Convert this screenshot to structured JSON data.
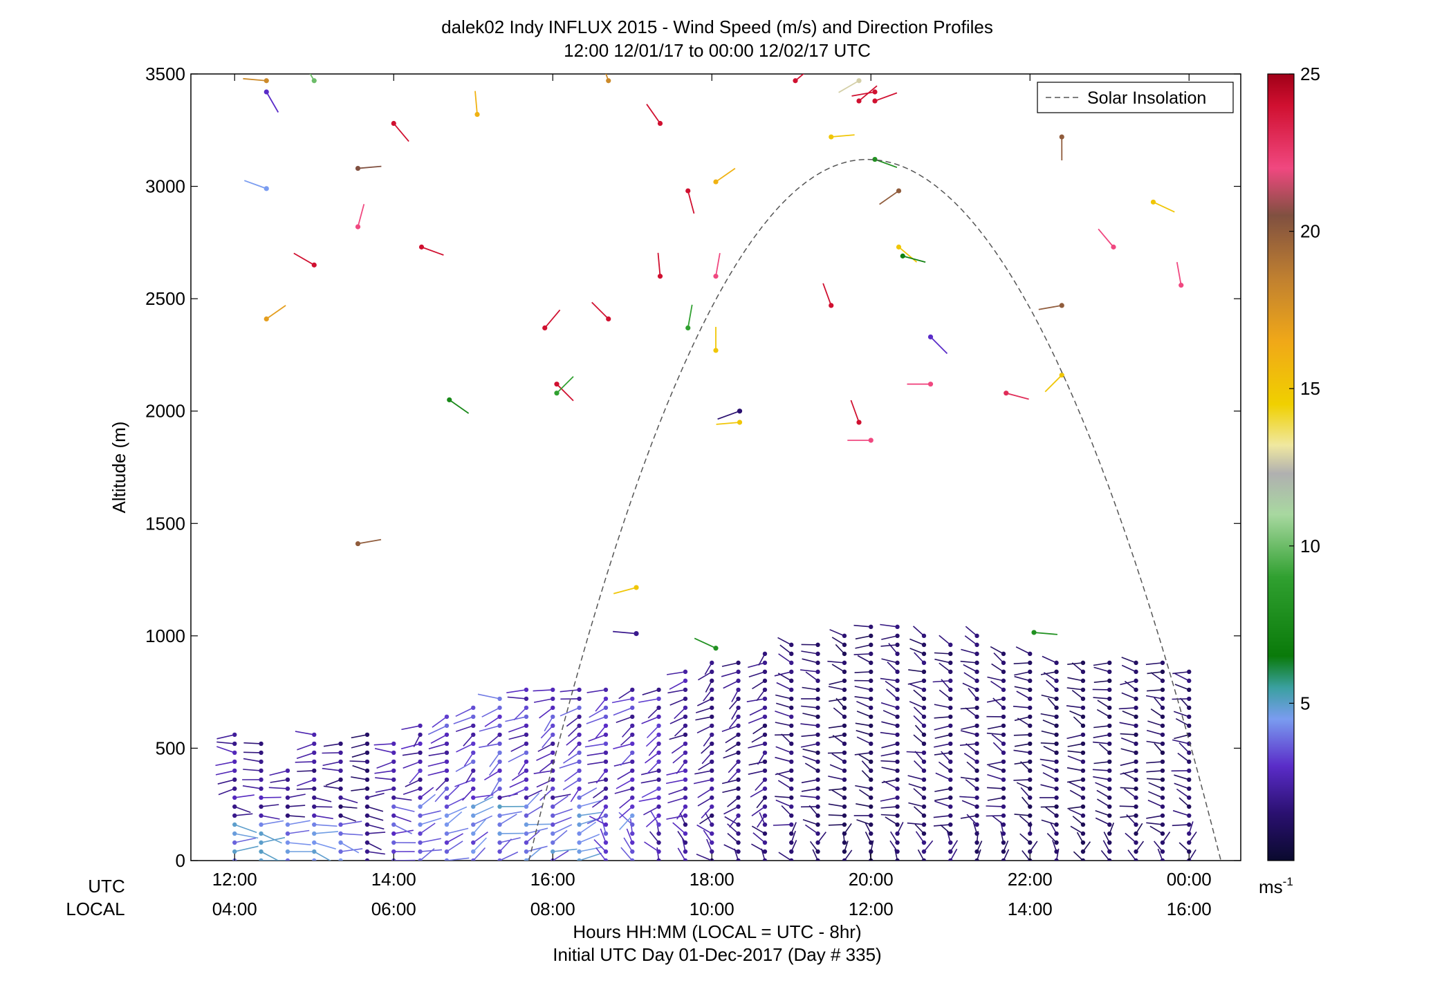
{
  "chart_data": {
    "type": "wind-barb-profile",
    "title": "dalek02 Indy INFLUX 2015 - Wind Speed (m/s) and Direction Profiles",
    "subtitle": "12:00 12/01/17 to 00:00 12/02/17  UTC",
    "ylabel": "Altitude (m)",
    "xlabel": "Hours HH:MM  (LOCAL = UTC - 8hr)",
    "xlabel2": "Initial UTC Day 01-Dec-2017 (Day # 335)",
    "row_label_utc": "UTC",
    "row_label_local": "LOCAL",
    "ylim": [
      0,
      3500
    ],
    "xlim_hours": [
      11.45,
      24.65
    ],
    "y_ticks": [
      "0",
      "500",
      "1000",
      "1500",
      "2000",
      "2500",
      "3000",
      "3500"
    ],
    "x_ticks": [
      {
        "utc": "12:00",
        "local": "04:00",
        "h": 12
      },
      {
        "utc": "14:00",
        "local": "06:00",
        "h": 14
      },
      {
        "utc": "16:00",
        "local": "08:00",
        "h": 16
      },
      {
        "utc": "18:00",
        "local": "10:00",
        "h": 18
      },
      {
        "utc": "20:00",
        "local": "12:00",
        "h": 20
      },
      {
        "utc": "22:00",
        "local": "14:00",
        "h": 22
      },
      {
        "utc": "00:00",
        "local": "16:00",
        "h": 24
      }
    ],
    "legend": {
      "label": "Solar Insolation",
      "position": "top-right",
      "style": "dashed"
    },
    "solar_insolation": {
      "start_h": 15.7,
      "end_h": 24.4,
      "peak_h": 19.95,
      "peak_altitude": 3120
    },
    "colorbar": {
      "range": [
        0,
        25
      ],
      "ticks": [
        "5",
        "10",
        "15",
        "20",
        "25"
      ],
      "unit": "ms",
      "unit_exp": "-1",
      "stops": [
        {
          "v": 0,
          "c": "#0a0a2e"
        },
        {
          "v": 1.5,
          "c": "#2a1070"
        },
        {
          "v": 3,
          "c": "#5a2cc8"
        },
        {
          "v": 4.5,
          "c": "#7a9cf0"
        },
        {
          "v": 5.5,
          "c": "#3aa0a0"
        },
        {
          "v": 6.5,
          "c": "#0a7a0a"
        },
        {
          "v": 9,
          "c": "#30a030"
        },
        {
          "v": 11,
          "c": "#a8d8a0"
        },
        {
          "v": 12.3,
          "c": "#b0b0b0"
        },
        {
          "v": 13.2,
          "c": "#f0e8a0"
        },
        {
          "v": 14.5,
          "c": "#f0d000"
        },
        {
          "v": 16.5,
          "c": "#f0a818"
        },
        {
          "v": 18.5,
          "c": "#c08030"
        },
        {
          "v": 20.5,
          "c": "#805040"
        },
        {
          "v": 22,
          "c": "#f04880"
        },
        {
          "v": 24,
          "c": "#d01030"
        },
        {
          "v": 25,
          "c": "#a00018"
        }
      ]
    },
    "profile_times_h": [
      12,
      12.333,
      12.667,
      13,
      13.333,
      13.667,
      14,
      14.333,
      14.667,
      15,
      15.333,
      15.667,
      16,
      16.333,
      16.667,
      17,
      17.333,
      17.667,
      18,
      18.333,
      18.667,
      19,
      19.333,
      19.667,
      20,
      20.333,
      20.667,
      21,
      21.333,
      21.667,
      22,
      22.333,
      22.667,
      23,
      23.333,
      23.667,
      24
    ],
    "profile_top_altitude_m": [
      560,
      520,
      430,
      560,
      520,
      560,
      520,
      600,
      660,
      700,
      720,
      760,
      790,
      790,
      790,
      790,
      790,
      860,
      880,
      900,
      920,
      960,
      980,
      1010,
      1050,
      1040,
      1030,
      980,
      1000,
      950,
      920,
      900,
      890,
      880,
      880,
      880,
      860
    ],
    "profile_mean_speed_ms": [
      2.2,
      2.2,
      2.0,
      2.2,
      1.8,
      1.6,
      2.2,
      2.6,
      3.0,
      3.2,
      3.2,
      3.0,
      3.0,
      3.0,
      2.8,
      2.8,
      2.6,
      2.2,
      2.0,
      1.8,
      1.8,
      1.6,
      1.4,
      1.2,
      1.2,
      1.4,
      1.4,
      1.4,
      1.4,
      1.4,
      1.2,
      1.2,
      1.2,
      1.2,
      1.2,
      1.2,
      1.4
    ],
    "sparse_points": [
      {
        "t": 12.4,
        "alt": 3470,
        "ws": 18,
        "dir": 275
      },
      {
        "t": 12.4,
        "alt": 3420,
        "ws": 3,
        "dir": 150
      },
      {
        "t": 12.4,
        "alt": 2990,
        "ws": 4.5,
        "dir": 290
      },
      {
        "t": 12.4,
        "alt": 2410,
        "ws": 17,
        "dir": 55
      },
      {
        "t": 13.0,
        "alt": 3470,
        "ws": 10,
        "dir": 330
      },
      {
        "t": 13.0,
        "alt": 2650,
        "ws": 24,
        "dir": 300
      },
      {
        "t": 13.55,
        "alt": 3080,
        "ws": 20.5,
        "dir": 85
      },
      {
        "t": 13.55,
        "alt": 2820,
        "ws": 22,
        "dir": 15
      },
      {
        "t": 13.55,
        "alt": 1410,
        "ws": 20,
        "dir": 80
      },
      {
        "t": 14.0,
        "alt": 3280,
        "ws": 24,
        "dir": 140
      },
      {
        "t": 14.35,
        "alt": 2730,
        "ws": 24,
        "dir": 110
      },
      {
        "t": 14.7,
        "alt": 2050,
        "ws": 7.5,
        "dir": 125
      },
      {
        "t": 15.05,
        "alt": 3320,
        "ws": 16,
        "dir": 355
      },
      {
        "t": 15.9,
        "alt": 2370,
        "ws": 24,
        "dir": 40
      },
      {
        "t": 16.05,
        "alt": 2120,
        "ws": 24,
        "dir": 135
      },
      {
        "t": 16.05,
        "alt": 2080,
        "ws": 9,
        "dir": 45
      },
      {
        "t": 16.7,
        "alt": 2410,
        "ws": 24,
        "dir": 315
      },
      {
        "t": 16.7,
        "alt": 3470,
        "ws": 18,
        "dir": 340
      },
      {
        "t": 17.05,
        "alt": 1215,
        "ws": 15,
        "dir": 255
      },
      {
        "t": 17.05,
        "alt": 1010,
        "ws": 2,
        "dir": 275
      },
      {
        "t": 17.35,
        "alt": 3280,
        "ws": 24,
        "dir": 325
      },
      {
        "t": 17.35,
        "alt": 2600,
        "ws": 24,
        "dir": 355
      },
      {
        "t": 17.7,
        "alt": 2980,
        "ws": 24,
        "dir": 165
      },
      {
        "t": 17.7,
        "alt": 2370,
        "ws": 9,
        "dir": 10
      },
      {
        "t": 18.05,
        "alt": 3020,
        "ws": 16,
        "dir": 55
      },
      {
        "t": 18.05,
        "alt": 2600,
        "ws": 22,
        "dir": 10
      },
      {
        "t": 18.05,
        "alt": 2270,
        "ws": 15,
        "dir": 0
      },
      {
        "t": 18.35,
        "alt": 2000,
        "ws": 1.5,
        "dir": 250
      },
      {
        "t": 18.35,
        "alt": 1950,
        "ws": 15,
        "dir": 265
      },
      {
        "t": 18.05,
        "alt": 945,
        "ws": 8,
        "dir": 295
      },
      {
        "t": 19.05,
        "alt": 3470,
        "ws": 24,
        "dir": 50
      },
      {
        "t": 19.5,
        "alt": 3220,
        "ws": 15,
        "dir": 85
      },
      {
        "t": 19.5,
        "alt": 2470,
        "ws": 24,
        "dir": 340
      },
      {
        "t": 19.85,
        "alt": 3470,
        "ws": 12.8,
        "dir": 240
      },
      {
        "t": 19.85,
        "alt": 3380,
        "ws": 24,
        "dir": 50
      },
      {
        "t": 20.05,
        "alt": 3420,
        "ws": 24,
        "dir": 260
      },
      {
        "t": 20.05,
        "alt": 3380,
        "ws": 24,
        "dir": 70
      },
      {
        "t": 19.85,
        "alt": 1950,
        "ws": 24,
        "dir": 340
      },
      {
        "t": 20.0,
        "alt": 1870,
        "ws": 22,
        "dir": 270
      },
      {
        "t": 20.05,
        "alt": 3120,
        "ws": 8,
        "dir": 110
      },
      {
        "t": 20.35,
        "alt": 2980,
        "ws": 20,
        "dir": 235
      },
      {
        "t": 20.35,
        "alt": 2730,
        "ws": 15,
        "dir": 130
      },
      {
        "t": 20.4,
        "alt": 2690,
        "ws": 7,
        "dir": 105
      },
      {
        "t": 20.75,
        "alt": 2330,
        "ws": 3,
        "dir": 135
      },
      {
        "t": 20.75,
        "alt": 2120,
        "ws": 22,
        "dir": 270
      },
      {
        "t": 21.7,
        "alt": 2080,
        "ws": 23,
        "dir": 105
      },
      {
        "t": 22.05,
        "alt": 1015,
        "ws": 8,
        "dir": 95
      },
      {
        "t": 22.4,
        "alt": 2160,
        "ws": 15,
        "dir": 225
      },
      {
        "t": 22.4,
        "alt": 2470,
        "ws": 20,
        "dir": 260
      },
      {
        "t": 22.4,
        "alt": 3220,
        "ws": 20,
        "dir": 180
      },
      {
        "t": 23.05,
        "alt": 2730,
        "ws": 22,
        "dir": 320
      },
      {
        "t": 23.55,
        "alt": 2930,
        "ws": 15,
        "dir": 115
      },
      {
        "t": 23.9,
        "alt": 2560,
        "ws": 22,
        "dir": 350
      }
    ]
  }
}
